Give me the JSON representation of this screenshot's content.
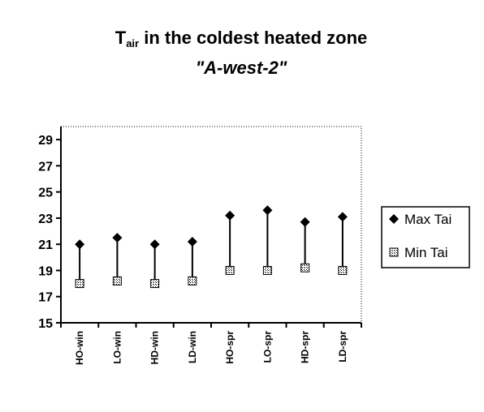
{
  "chart_data": {
    "type": "scatter",
    "title_main": "T",
    "title_subscript": "air",
    "title_rest": " in  the coldest heated zone",
    "subtitle": "\"A-west-2\"",
    "xlabel": "",
    "ylabel": "",
    "categories": [
      "HO-win",
      "LO-win",
      "HD-win",
      "LD-win",
      "HO-spr",
      "LO-spr",
      "HD-spr",
      "LD-spr"
    ],
    "series": [
      {
        "name": "Max Tai",
        "marker": "diamond",
        "values": [
          21.0,
          21.5,
          21.0,
          21.2,
          23.2,
          23.6,
          22.7,
          23.1
        ]
      },
      {
        "name": "Min Tai",
        "marker": "hatched-square",
        "values": [
          18.0,
          18.2,
          18.0,
          18.2,
          19.0,
          19.0,
          19.2,
          19.0
        ]
      }
    ],
    "ylim": [
      15,
      30
    ],
    "yticks": [
      15,
      17,
      19,
      21,
      23,
      25,
      27,
      29
    ],
    "grid": false,
    "high_low_lines": true,
    "plot_border": "dotted",
    "legend_position": "right",
    "colors": {
      "marker": "#000000",
      "line": "#000000",
      "background": "#ffffff"
    }
  }
}
